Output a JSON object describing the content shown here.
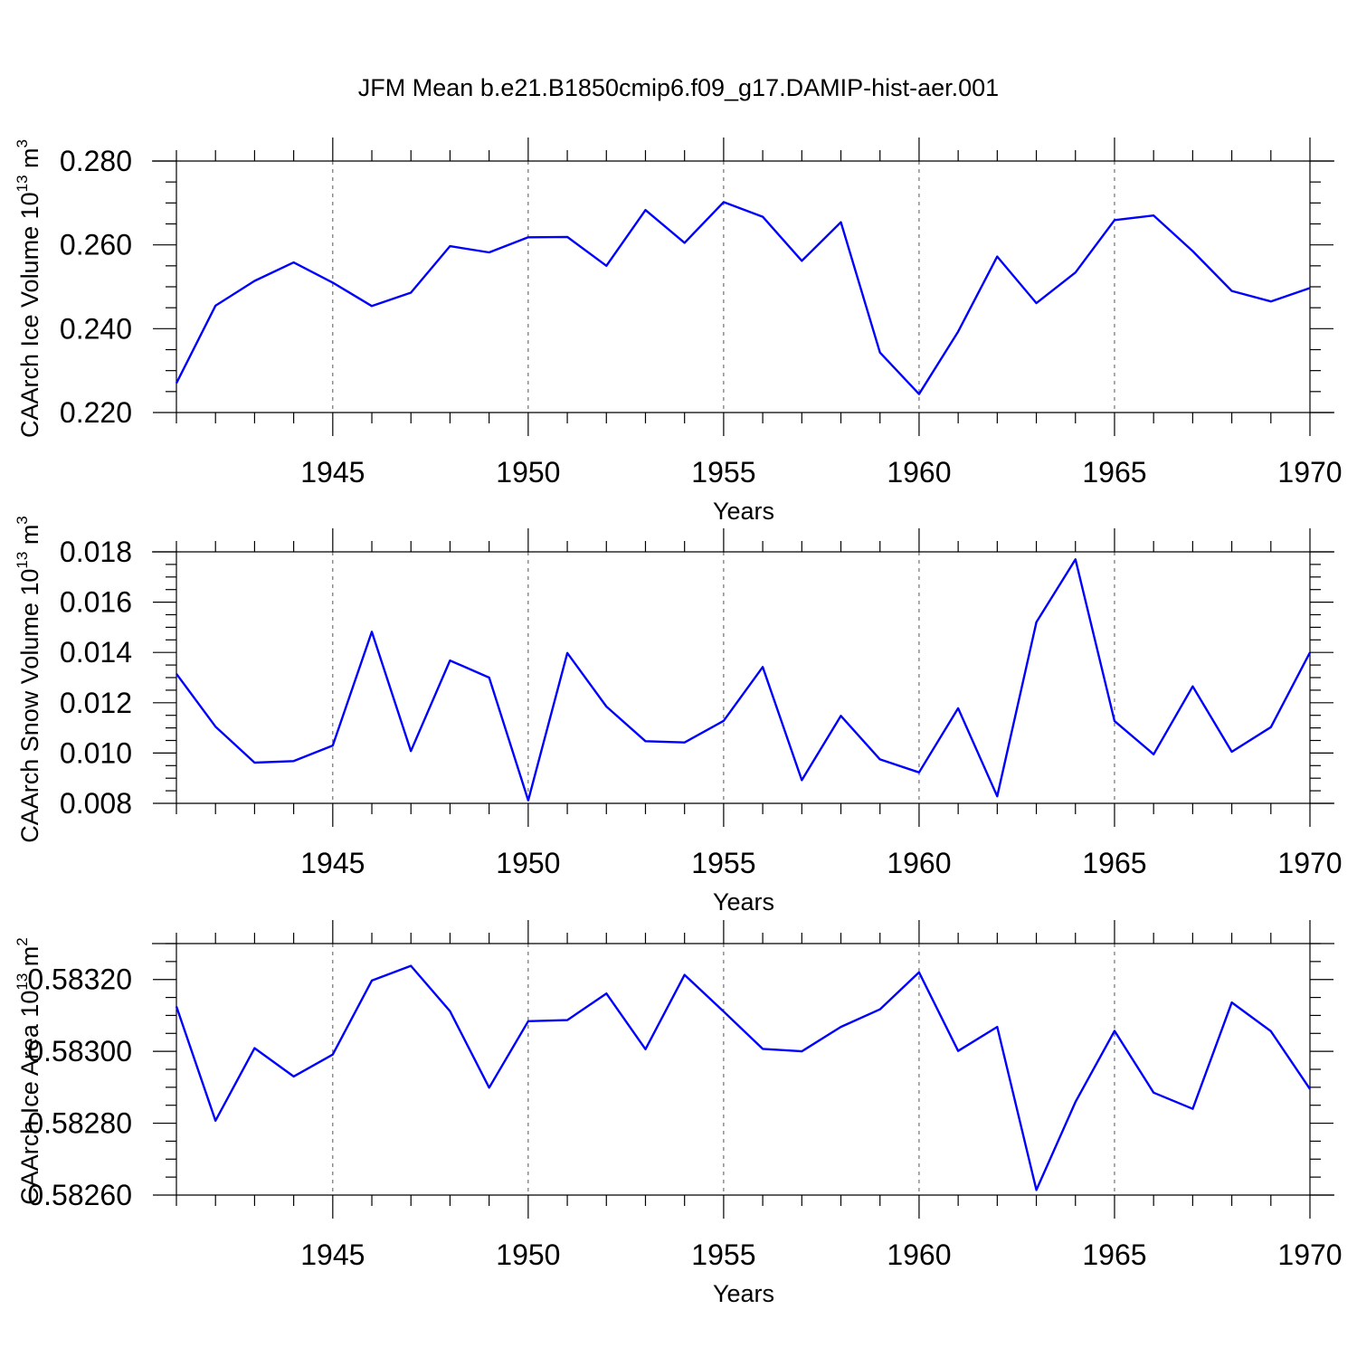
{
  "title": "JFM Mean b.e21.B1850cmip6.f09_g17.DAMIP-hist-aer.001",
  "colors": {
    "series": "#0000ff",
    "axis": "#000000",
    "grid": "#555555"
  },
  "chart_data": [
    {
      "type": "line",
      "ylabel": "CAArch Ice Volume 10",
      "ylabel_exp": "13",
      "ylabel_unit": " m",
      "ylabel_unit_exp": "3",
      "xlabel": "Years",
      "xlim": [
        1941,
        1970
      ],
      "ylim": [
        0.22,
        0.28
      ],
      "yticks": [
        0.22,
        0.24,
        0.26,
        0.28
      ],
      "ytick_labels": [
        "0.220",
        "0.240",
        "0.260",
        "0.280"
      ],
      "xticks": [
        1945,
        1950,
        1955,
        1960,
        1965,
        1970
      ],
      "xtick_labels": [
        "1945",
        "1950",
        "1955",
        "1960",
        "1965",
        "1970"
      ],
      "x": [
        1941,
        1942,
        1943,
        1944,
        1945,
        1946,
        1947,
        1948,
        1949,
        1950,
        1951,
        1952,
        1953,
        1954,
        1955,
        1956,
        1957,
        1958,
        1959,
        1960,
        1961,
        1962,
        1963,
        1964,
        1965,
        1966,
        1967,
        1968,
        1969,
        1970
      ],
      "values": [
        0.227,
        0.2455,
        0.2514,
        0.2558,
        0.251,
        0.2454,
        0.2486,
        0.2597,
        0.2582,
        0.2618,
        0.2619,
        0.255,
        0.2683,
        0.2605,
        0.2702,
        0.2667,
        0.2562,
        0.2654,
        0.2343,
        0.2244,
        0.2393,
        0.2572,
        0.2461,
        0.2534,
        0.2659,
        0.267,
        0.2585,
        0.249,
        0.2465,
        0.2497
      ]
    },
    {
      "type": "line",
      "ylabel": "CAArch Snow Volume 10",
      "ylabel_exp": "13",
      "ylabel_unit": " m",
      "ylabel_unit_exp": "3",
      "xlabel": "Years",
      "xlim": [
        1941,
        1970
      ],
      "ylim": [
        0.008,
        0.018
      ],
      "yticks": [
        0.008,
        0.01,
        0.012,
        0.014,
        0.016,
        0.018
      ],
      "ytick_labels": [
        "0.008",
        "0.010",
        "0.012",
        "0.014",
        "0.016",
        "0.018"
      ],
      "xticks": [
        1945,
        1950,
        1955,
        1960,
        1965,
        1970
      ],
      "xtick_labels": [
        "1945",
        "1950",
        "1955",
        "1960",
        "1965",
        "1970"
      ],
      "x": [
        1941,
        1942,
        1943,
        1944,
        1945,
        1946,
        1947,
        1948,
        1949,
        1950,
        1951,
        1952,
        1953,
        1954,
        1955,
        1956,
        1957,
        1958,
        1959,
        1960,
        1961,
        1962,
        1963,
        1964,
        1965,
        1966,
        1967,
        1968,
        1969,
        1970
      ],
      "values": [
        0.01315,
        0.01105,
        0.00962,
        0.00968,
        0.0103,
        0.01482,
        0.01008,
        0.01368,
        0.013,
        0.00812,
        0.01398,
        0.01185,
        0.01047,
        0.01042,
        0.01128,
        0.01342,
        0.00892,
        0.01148,
        0.00975,
        0.00923,
        0.01178,
        0.00828,
        0.0152,
        0.0177,
        0.01127,
        0.00995,
        0.01265,
        0.01005,
        0.01103,
        0.014
      ]
    },
    {
      "type": "line",
      "ylabel": "CAArch Ice Area 10",
      "ylabel_exp": "13",
      "ylabel_unit": " m",
      "ylabel_unit_exp": "2",
      "xlabel": "Years",
      "xlim": [
        1941,
        1970
      ],
      "ylim": [
        0.5826,
        0.5833
      ],
      "yticks": [
        0.5826,
        0.5828,
        0.583,
        0.5832
      ],
      "ytick_labels": [
        "0.58260",
        "0.58280",
        "0.58300",
        "0.58320"
      ],
      "xticks": [
        1945,
        1950,
        1955,
        1960,
        1965,
        1970
      ],
      "xtick_labels": [
        "1945",
        "1950",
        "1955",
        "1960",
        "1965",
        "1970"
      ],
      "x": [
        1941,
        1942,
        1943,
        1944,
        1945,
        1946,
        1947,
        1948,
        1949,
        1950,
        1951,
        1952,
        1953,
        1954,
        1955,
        1956,
        1957,
        1958,
        1959,
        1960,
        1961,
        1962,
        1963,
        1964,
        1965,
        1966,
        1967,
        1968,
        1969,
        1970
      ],
      "values": [
        0.583125,
        0.582807,
        0.583009,
        0.58293,
        0.582991,
        0.583197,
        0.583238,
        0.583112,
        0.582899,
        0.583084,
        0.583087,
        0.583161,
        0.583006,
        0.583213,
        0.583111,
        0.583007,
        0.583,
        0.583068,
        0.583117,
        0.58322,
        0.583001,
        0.583068,
        0.582614,
        0.582859,
        0.583057,
        0.582885,
        0.58284,
        0.583136,
        0.583056,
        0.582895
      ]
    }
  ]
}
